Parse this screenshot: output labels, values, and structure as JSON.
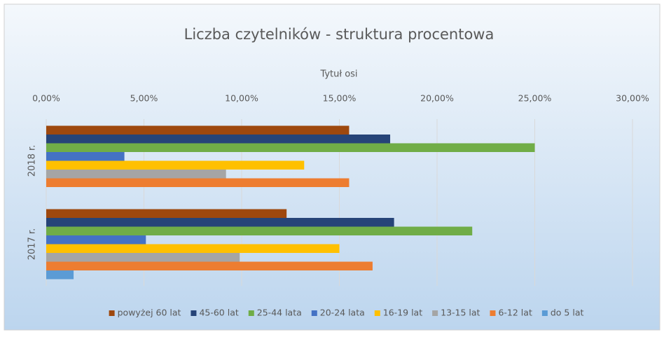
{
  "chart_data": {
    "type": "bar",
    "orientation": "horizontal",
    "title": "Liczba czytelników - struktura procentowa",
    "x_label": "Tytuł osi",
    "categories": [
      "2018 r.",
      "2017 r."
    ],
    "series": [
      {
        "name": "powyżej 60 lat",
        "color": "#9e480e",
        "values": [
          15.5,
          12.3
        ]
      },
      {
        "name": "45-60 lat",
        "color": "#264478",
        "values": [
          17.6,
          17.8
        ]
      },
      {
        "name": "25-44 lata",
        "color": "#70ad47",
        "values": [
          25.0,
          21.8
        ]
      },
      {
        "name": "20-24 lata",
        "color": "#4472c4",
        "values": [
          4.0,
          5.1
        ]
      },
      {
        "name": "16-19 lat",
        "color": "#ffc000",
        "values": [
          13.2,
          15.0
        ]
      },
      {
        "name": "13-15 lat",
        "color": "#a5a5a5",
        "values": [
          9.2,
          9.9
        ]
      },
      {
        "name": "6-12 lat",
        "color": "#ed7d31",
        "values": [
          15.5,
          16.7
        ]
      },
      {
        "name": "do 5 lat",
        "color": "#5b9bd5",
        "values": [
          0,
          1.4
        ]
      }
    ],
    "xlim": [
      0,
      30
    ],
    "xticks": [
      {
        "value": 0,
        "label": "0,00%"
      },
      {
        "value": 5,
        "label": "5,00%"
      },
      {
        "value": 10,
        "label": "10,00%"
      },
      {
        "value": 15,
        "label": "15,00%"
      },
      {
        "value": 20,
        "label": "20,00%"
      },
      {
        "value": 25,
        "label": "25,00%"
      },
      {
        "value": 30,
        "label": "30,00%"
      }
    ],
    "grid": true,
    "legend": "bottom"
  }
}
